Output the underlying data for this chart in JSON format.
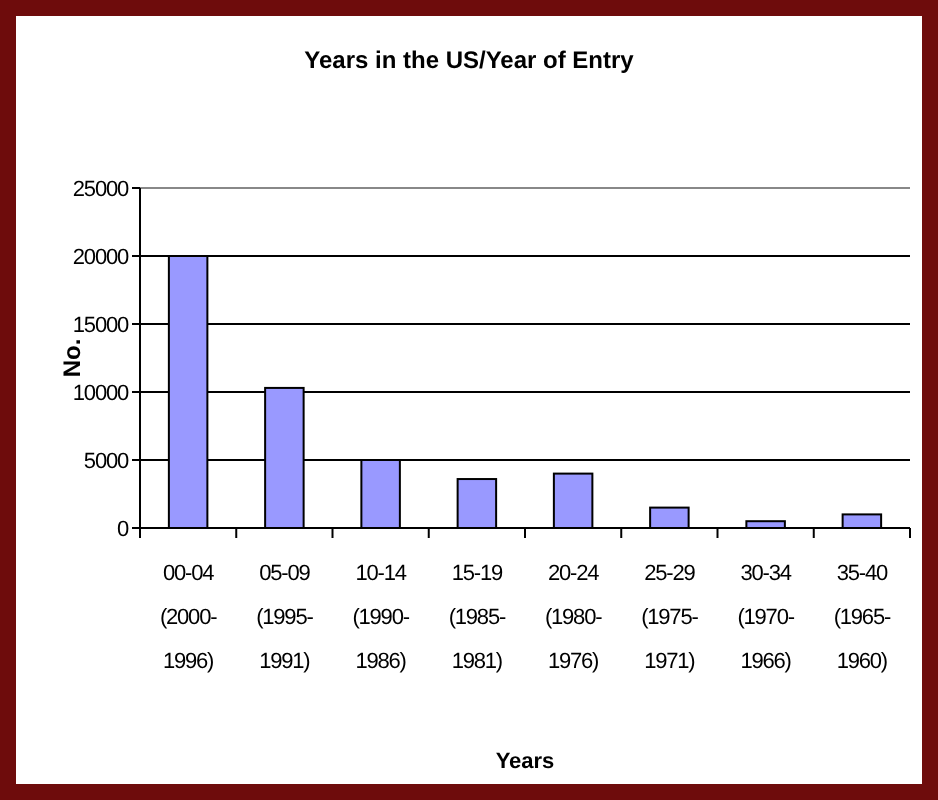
{
  "chart_data": {
    "type": "bar",
    "title": "Years in the US/Year of Entry",
    "xlabel": "Years",
    "ylabel": "No.",
    "categories": [
      "00-04\n(2000-\n1996)",
      "05-09\n(1995-\n1991)",
      "10-14\n(1990-\n1986)",
      "15-19\n(1985-\n1981)",
      "20-24\n(1980-\n1976)",
      "25-29\n(1975-\n1971)",
      "30-34\n(1970-\n1966)",
      "35-40\n(1965-\n1960)"
    ],
    "values": [
      20000,
      10300,
      5000,
      3600,
      4000,
      1500,
      500,
      1000
    ],
    "color": "#9999ff",
    "ylim": [
      0,
      25000
    ],
    "yticks": [
      0,
      5000,
      10000,
      15000,
      20000,
      25000
    ],
    "grid": "y"
  }
}
